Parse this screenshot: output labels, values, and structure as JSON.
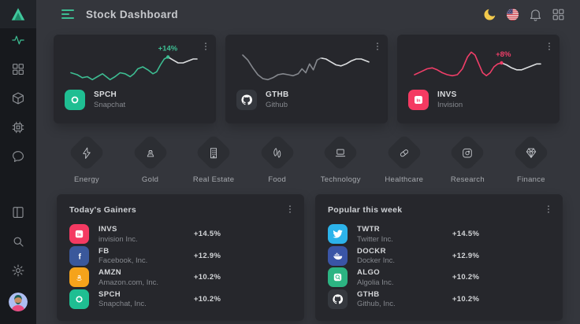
{
  "header": {
    "title": "Stock Dashboard"
  },
  "topbar": {
    "icons": [
      "moon-icon",
      "us-flag-icon",
      "bell-icon",
      "apps-grid-icon"
    ]
  },
  "sidebar": {
    "icons": [
      "logo-triangle",
      "activity-icon",
      "dashboard-grid-icon",
      "cube-icon",
      "cpu-icon",
      "chat-icon",
      "layout-icon",
      "search-icon",
      "settings-gear-icon",
      "user-avatar"
    ]
  },
  "colors": {
    "bg": "#34363c",
    "sidebar_bg": "#17191d",
    "card_bg": "#26272c",
    "accent_green": "#3dbd92",
    "accent_pink": "#ef3e68",
    "text_primary": "#d5d7da",
    "text_secondary": "#85888e"
  },
  "cards": [
    {
      "ticker": "SPCH",
      "company": "Snapchat",
      "change": "+14%",
      "accent": "#3dbd92",
      "icon": "snapchat",
      "icon_bg": "#1fbe92"
    },
    {
      "ticker": "GTHB",
      "company": "Github",
      "change": "",
      "accent": "#85888e",
      "icon": "github",
      "icon_bg": "#35383e"
    },
    {
      "ticker": "INVS",
      "company": "Invision",
      "change": "+8%",
      "accent": "#ef3e68",
      "icon": "invision",
      "icon_bg": "#f43a62"
    }
  ],
  "categories": [
    {
      "label": "Energy",
      "icon": "energy-icon"
    },
    {
      "label": "Gold",
      "icon": "gold-icon"
    },
    {
      "label": "Real Estate",
      "icon": "real-estate-icon"
    },
    {
      "label": "Food",
      "icon": "food-icon"
    },
    {
      "label": "Technology",
      "icon": "technology-icon"
    },
    {
      "label": "Healthcare",
      "icon": "healthcare-icon"
    },
    {
      "label": "Research",
      "icon": "research-icon"
    },
    {
      "label": "Finance",
      "icon": "finance-icon"
    }
  ],
  "panels": [
    {
      "title": "Today's Gainers",
      "menu": "kebab-icon",
      "rows": [
        {
          "ticker": "INVS",
          "company": "invision Inc.",
          "change": "+14.5%",
          "icon": "invision",
          "icon_bg": "#f43a62"
        },
        {
          "ticker": "FB",
          "company": "Facebook, Inc.",
          "change": "+12.9%",
          "icon": "facebook",
          "icon_bg": "#3a589b"
        },
        {
          "ticker": "AMZN",
          "company": "Amazon.com, Inc.",
          "change": "+10.2%",
          "icon": "amazon",
          "icon_bg": "#f5a31b"
        },
        {
          "ticker": "SPCH",
          "company": "Snapchat, Inc.",
          "change": "+10.2%",
          "icon": "snapchat",
          "icon_bg": "#1fbe92"
        }
      ]
    },
    {
      "title": "Popular this week",
      "menu": "kebab-icon",
      "rows": [
        {
          "ticker": "TWTR",
          "company": "Twitter Inc.",
          "change": "+14.5%",
          "icon": "twitter",
          "icon_bg": "#2cb3ea"
        },
        {
          "ticker": "DOCKR",
          "company": "Docker Inc.",
          "change": "+12.9%",
          "icon": "docker",
          "icon_bg": "#3a55a6"
        },
        {
          "ticker": "ALGO",
          "company": "Algolia Inc.",
          "change": "+10.2%",
          "icon": "algolia",
          "icon_bg": "#2cb482"
        },
        {
          "ticker": "GTHB",
          "company": "Github, Inc.",
          "change": "+10.2%",
          "icon": "github",
          "icon_bg": "#35383e"
        }
      ]
    }
  ],
  "chart_data": [
    {
      "name": "SPCH sparkline",
      "type": "line",
      "annotation": "+14%",
      "y_inverted": true,
      "range": {
        "x": [
          0,
          100
        ],
        "y": [
          0,
          40
        ]
      },
      "marker": [
        77,
        10
      ],
      "series": [
        {
          "name": "history",
          "color": "#3dbd92",
          "points": [
            [
              0,
              26
            ],
            [
              5,
              28
            ],
            [
              9,
              31
            ],
            [
              13,
              30
            ],
            [
              17,
              33
            ],
            [
              21,
              30
            ],
            [
              25,
              27
            ],
            [
              28,
              30
            ],
            [
              31,
              33
            ],
            [
              35,
              30
            ],
            [
              39,
              26
            ],
            [
              43,
              27
            ],
            [
              47,
              30
            ],
            [
              50,
              27
            ],
            [
              53,
              22
            ],
            [
              57,
              20
            ],
            [
              61,
              23
            ],
            [
              65,
              27
            ],
            [
              68,
              25
            ],
            [
              71,
              18
            ],
            [
              74,
              12
            ],
            [
              77,
              10
            ]
          ]
        },
        {
          "name": "tail",
          "color": "#dcdee0",
          "points": [
            [
              77,
              10
            ],
            [
              81,
              13
            ],
            [
              85,
              16
            ],
            [
              89,
              16
            ],
            [
              93,
              14
            ],
            [
              97,
              12
            ],
            [
              100,
              12
            ]
          ]
        }
      ]
    },
    {
      "name": "GTHB sparkline",
      "type": "line",
      "annotation": "",
      "y_inverted": true,
      "range": {
        "x": [
          0,
          100
        ],
        "y": [
          0,
          40
        ]
      },
      "marker": null,
      "series": [
        {
          "name": "history",
          "color": "#85888e",
          "points": [
            [
              0,
              8
            ],
            [
              4,
              13
            ],
            [
              8,
              21
            ],
            [
              12,
              28
            ],
            [
              16,
              32
            ],
            [
              20,
              33
            ],
            [
              24,
              31
            ],
            [
              28,
              28
            ],
            [
              32,
              27
            ],
            [
              36,
              28
            ],
            [
              40,
              29
            ],
            [
              44,
              27
            ],
            [
              47,
              22
            ],
            [
              50,
              26
            ],
            [
              53,
              17
            ],
            [
              56,
              23
            ],
            [
              59,
              13
            ],
            [
              62,
              11
            ]
          ]
        },
        {
          "name": "tail",
          "color": "#dcdee0",
          "points": [
            [
              62,
              11
            ],
            [
              66,
              12
            ],
            [
              70,
              15
            ],
            [
              74,
              18
            ],
            [
              78,
              19
            ],
            [
              82,
              17
            ],
            [
              86,
              14
            ],
            [
              90,
              12
            ],
            [
              94,
              12
            ],
            [
              98,
              14
            ],
            [
              100,
              15
            ]
          ]
        }
      ]
    },
    {
      "name": "INVS sparkline",
      "type": "line",
      "annotation": "+8%",
      "y_inverted": true,
      "range": {
        "x": [
          0,
          100
        ],
        "y": [
          0,
          40
        ]
      },
      "marker": [
        69,
        16
      ],
      "series": [
        {
          "name": "history",
          "color": "#ef3e68",
          "points": [
            [
              0,
              28
            ],
            [
              5,
              25
            ],
            [
              10,
              22
            ],
            [
              14,
              21
            ],
            [
              18,
              23
            ],
            [
              22,
              26
            ],
            [
              26,
              28
            ],
            [
              30,
              29
            ],
            [
              34,
              28
            ],
            [
              38,
              22
            ],
            [
              42,
              10
            ],
            [
              45,
              5
            ],
            [
              48,
              8
            ],
            [
              51,
              17
            ],
            [
              54,
              26
            ],
            [
              57,
              29
            ],
            [
              60,
              26
            ],
            [
              63,
              20
            ],
            [
              66,
              17
            ],
            [
              69,
              16
            ]
          ]
        },
        {
          "name": "tail",
          "color": "#dcdee0",
          "points": [
            [
              69,
              16
            ],
            [
              73,
              18
            ],
            [
              77,
              21
            ],
            [
              81,
              23
            ],
            [
              85,
              23
            ],
            [
              89,
              21
            ],
            [
              93,
              19
            ],
            [
              97,
              17
            ],
            [
              100,
              17
            ]
          ]
        }
      ]
    }
  ]
}
